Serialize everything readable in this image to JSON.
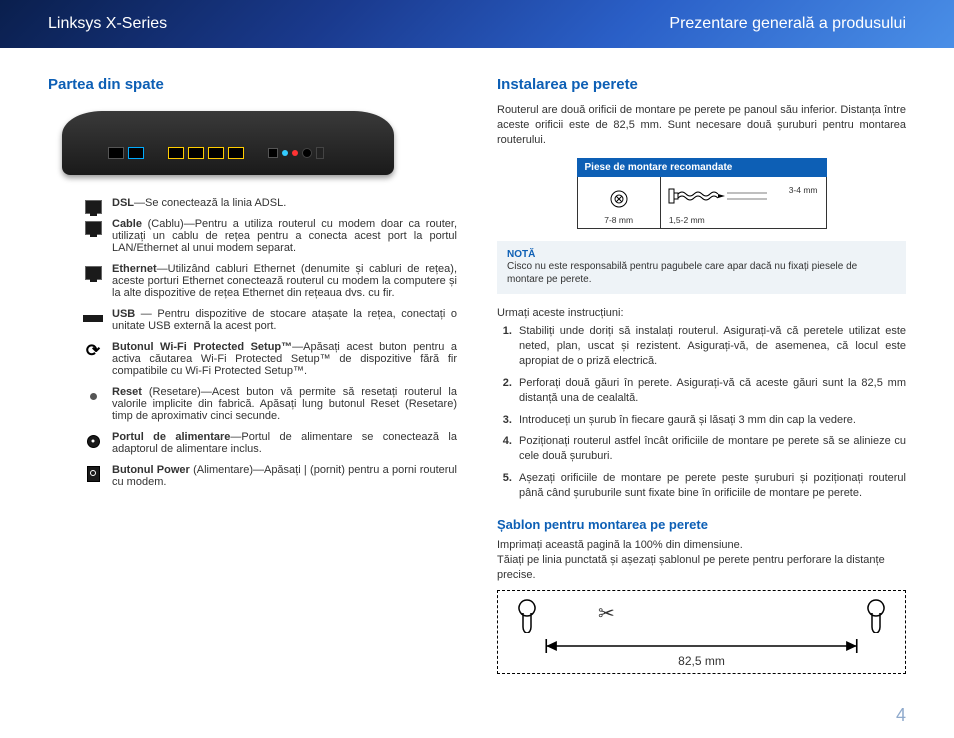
{
  "header": {
    "left": "Linksys X-Series",
    "right": "Prezentare generală a produsului"
  },
  "left": {
    "heading": "Partea din spate",
    "ports": [
      {
        "icon": "rj45",
        "name": "dsl-port-desc",
        "bold": "DSL",
        "text": "—Se conectează la linia ADSL."
      },
      {
        "icon": "rj45",
        "name": "cable-port-desc",
        "bold": "Cable",
        "text": " (Cablu)—Pentru a utiliza routerul cu modem doar ca router, utilizați un cablu de rețea pentru a conecta acest port la portul LAN/Ethernet al unui modem separat."
      },
      {
        "icon": "rj45",
        "name": "ethernet-port-desc",
        "bold": "Ethernet",
        "text": "—Utilizând cabluri Ethernet (denumite și cabluri de rețea), aceste porturi Ethernet conectează routerul cu modem la computere și la alte dispozitive de rețea Ethernet din rețeaua dvs. cu fir."
      },
      {
        "icon": "usb",
        "name": "usb-port-desc",
        "bold": "USB",
        "text": " — Pentru dispozitive de stocare atașate la rețea, conectați o unitate USB externă la acest port."
      },
      {
        "icon": "wps",
        "name": "wps-button-desc",
        "bold": "Butonul Wi-Fi Protected Setup™",
        "text": "—Apăsați acest buton pentru a activa căutarea Wi-Fi Protected Setup™ de dispozitive fără fir compatibile cu Wi-Fi Protected Setup™."
      },
      {
        "icon": "dot",
        "name": "reset-button-desc",
        "bold": "Reset",
        "text": " (Resetare)—Acest buton vă permite să resetați routerul la valorile implicite din fabrică. Apăsați lung butonul Reset (Resetare) timp de aproximativ cinci secunde."
      },
      {
        "icon": "power",
        "name": "power-port-desc",
        "bold": "Portul de alimentare",
        "text": "—Portul de alimentare se conectează la adaptorul de alimentare inclus."
      },
      {
        "icon": "btn",
        "name": "power-button-desc",
        "bold": "Butonul Power",
        "text": " (Alimentare)—Apăsați | (pornit) pentru a porni routerul cu modem."
      }
    ]
  },
  "right": {
    "heading": "Instalarea pe perete",
    "intro": "Routerul are două orificii de montare pe perete pe panoul său inferior. Distanța între aceste orificii este de 82,5 mm. Sunt necesare două șuruburi pentru montarea routerului.",
    "hw_title": "Piese de montare recomandate",
    "hw_dim1": "7-8 mm",
    "hw_dim2": "1,5-2 mm",
    "hw_dim3": "3-4 mm",
    "note_title": "NOTĂ",
    "note_text": "Cisco nu este responsabilă pentru pagubele care apar dacă nu fixați piesele de montare pe perete.",
    "follow": "Urmați aceste instrucțiuni:",
    "steps": [
      "Stabiliți unde doriți să instalați routerul. Asigurați-vă că peretele utilizat este neted, plan, uscat și rezistent. Asigurați-vă, de asemenea, că locul este apropiat de o priză electrică.",
      "Perforați două găuri în perete. Asigurați-vă că aceste găuri sunt la 82,5 mm distanță una de cealaltă.",
      "Introduceți un șurub în fiecare gaură și lăsați 3 mm din cap la vedere.",
      "Poziționați routerul astfel încât orificiile de montare pe perete să se alinieze cu cele două șuruburi.",
      "Așezați orificiile de montare pe perete peste șuruburi și poziționați routerul până când șuruburile sunt fixate bine în orificiile de montare pe perete."
    ],
    "template_heading": "Șablon pentru montarea pe perete",
    "template_p1": "Imprimați această pagină la 100% din dimensiune.",
    "template_p2": "Tăiați pe linia punctată și așezați șablonul pe perete pentru perforare la distanțe precise.",
    "template_dim": "82,5 mm"
  },
  "page_number": "4"
}
